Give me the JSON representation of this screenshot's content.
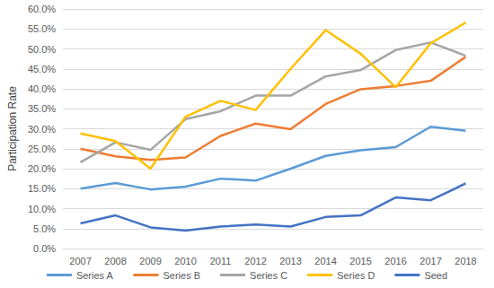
{
  "chart_data": {
    "type": "line",
    "y_label": "Participation Rate",
    "categories": [
      "2007",
      "2008",
      "2009",
      "2010",
      "2011",
      "2012",
      "2013",
      "2014",
      "2015",
      "2016",
      "2017",
      "2018"
    ],
    "series": [
      {
        "name": "Series A",
        "color": "#5B9BD5",
        "values": [
          15.0,
          16.4,
          14.8,
          15.5,
          17.5,
          17.0,
          20.0,
          23.2,
          24.6,
          25.4,
          30.5,
          29.5
        ]
      },
      {
        "name": "Series B",
        "color": "#ED7D31",
        "values": [
          25.0,
          23.1,
          22.2,
          22.8,
          28.2,
          31.3,
          29.9,
          36.2,
          39.9,
          40.7,
          42.0,
          48.0
        ]
      },
      {
        "name": "Series C",
        "color": "#A5A5A5",
        "values": [
          21.6,
          26.6,
          24.7,
          32.4,
          34.4,
          38.3,
          38.3,
          43.1,
          44.7,
          49.7,
          51.6,
          48.3
        ]
      },
      {
        "name": "Series D",
        "color": "#FFC000",
        "values": [
          28.8,
          26.9,
          20.0,
          33.0,
          37.0,
          34.7,
          45.0,
          54.7,
          48.8,
          40.4,
          51.4,
          56.6
        ]
      },
      {
        "name": "Seed",
        "color": "#4472C4",
        "values": [
          6.3,
          8.3,
          5.3,
          4.5,
          5.5,
          6.0,
          5.5,
          7.9,
          8.3,
          12.8,
          12.1,
          16.3
        ]
      }
    ],
    "ylim": [
      0,
      60
    ],
    "yticks": [
      {
        "value": 0,
        "label": "0.0%"
      },
      {
        "value": 5,
        "label": "5.0%"
      },
      {
        "value": 10,
        "label": "10.0%"
      },
      {
        "value": 15,
        "label": "15.0%"
      },
      {
        "value": 20,
        "label": "20.0%"
      },
      {
        "value": 25,
        "label": "25.0%"
      },
      {
        "value": 30,
        "label": "30.0%"
      },
      {
        "value": 35,
        "label": "35.0%"
      },
      {
        "value": 40,
        "label": "40.0%"
      },
      {
        "value": 45,
        "label": "45.0%"
      },
      {
        "value": 50,
        "label": "50.0%"
      },
      {
        "value": 55,
        "label": "55.0%"
      },
      {
        "value": 60,
        "label": "60.0%"
      }
    ],
    "grid": true,
    "legend": "bottom"
  }
}
